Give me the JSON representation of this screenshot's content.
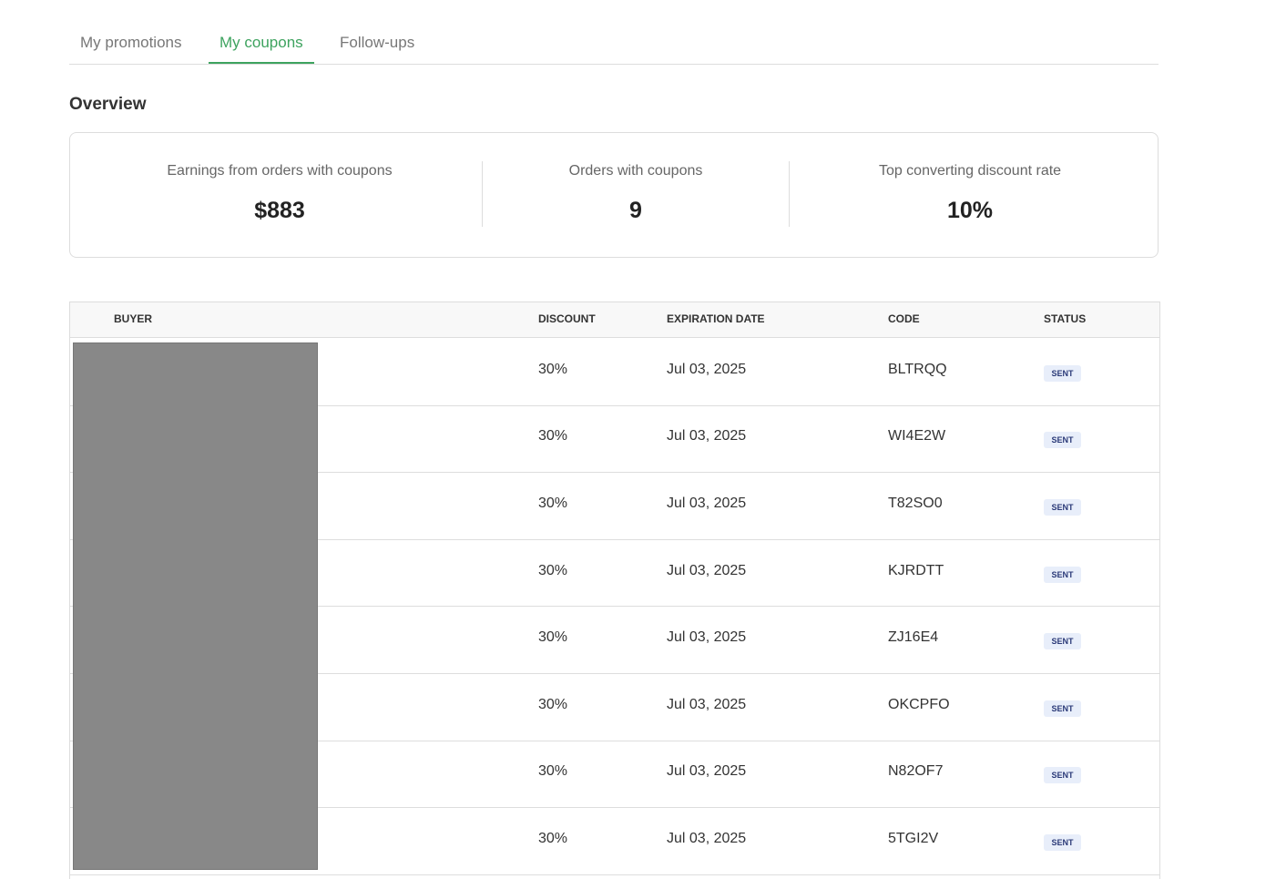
{
  "tabs": {
    "items": [
      "My promotions",
      "My coupons",
      "Follow-ups"
    ],
    "active": 1
  },
  "overview": {
    "title": "Overview",
    "stats": [
      {
        "label": "Earnings from orders with coupons",
        "value": "$883"
      },
      {
        "label": "Orders with coupons",
        "value": "9"
      },
      {
        "label": "Top converting discount rate",
        "value": "10%"
      }
    ]
  },
  "table": {
    "headers": [
      "BUYER",
      "DISCOUNT",
      "EXPIRATION DATE",
      "CODE",
      "STATUS"
    ],
    "rows": [
      {
        "discount": "30%",
        "expiration": "Jul 03, 2025",
        "code": "BLTRQQ",
        "status": "SENT"
      },
      {
        "discount": "30%",
        "expiration": "Jul 03, 2025",
        "code": "WI4E2W",
        "status": "SENT"
      },
      {
        "discount": "30%",
        "expiration": "Jul 03, 2025",
        "code": "T82SO0",
        "status": "SENT"
      },
      {
        "discount": "30%",
        "expiration": "Jul 03, 2025",
        "code": "KJRDTT",
        "status": "SENT"
      },
      {
        "discount": "30%",
        "expiration": "Jul 03, 2025",
        "code": "ZJ16E4",
        "status": "SENT"
      },
      {
        "discount": "30%",
        "expiration": "Jul 03, 2025",
        "code": "OKCPFO",
        "status": "SENT"
      },
      {
        "discount": "30%",
        "expiration": "Jul 03, 2025",
        "code": "N82OF7",
        "status": "SENT"
      },
      {
        "discount": "30%",
        "expiration": "Jul 03, 2025",
        "code": "5TGI2V",
        "status": "SENT"
      }
    ]
  }
}
